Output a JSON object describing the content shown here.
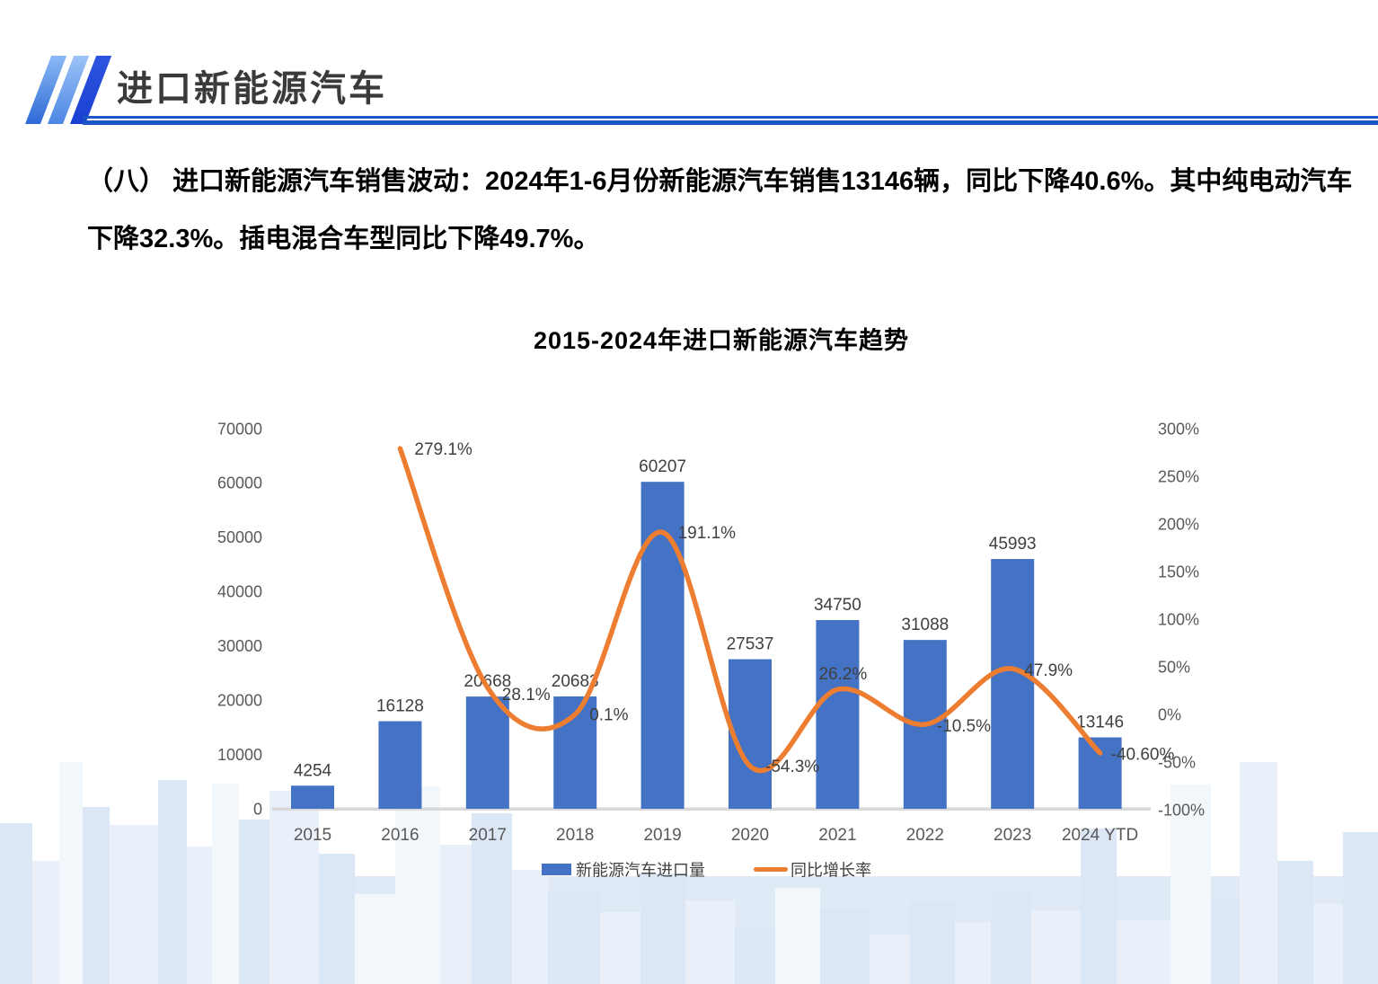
{
  "header": {
    "title": "进口新能源汽车"
  },
  "paragraph": {
    "lines": [
      "（八） 进口新能源汽车销售波动：2024年1-6月份新能源汽车销售13146辆，同比下降40.6%。其中纯电动汽车",
      "下降32.3%。插电混合车型同比下降49.7%。"
    ]
  },
  "colors": {
    "accent_blue": "#1b55c6",
    "bar_blue": "#4472C4",
    "line_orange": "#ED7D31",
    "axis_gray": "#595959",
    "baseline_gray": "#d8d8d8"
  },
  "chart_data": {
    "type": "combo",
    "title": "2015-2024年进口新能源汽车趋势",
    "categories": [
      "2015",
      "2016",
      "2017",
      "2018",
      "2019",
      "2020",
      "2021",
      "2022",
      "2023",
      "2024 YTD"
    ],
    "series": [
      {
        "name": "新能源汽车进口量",
        "type": "bar",
        "color": "#4472C4",
        "values": [
          4254,
          16128,
          20668,
          20683,
          60207,
          27537,
          34750,
          31088,
          45993,
          13146
        ],
        "labels": [
          "4254",
          "16128",
          "20668",
          "20683",
          "60207",
          "27537",
          "34750",
          "31088",
          "45993",
          "13146"
        ]
      },
      {
        "name": "同比增长率",
        "type": "line",
        "color": "#ED7D31",
        "values": [
          null,
          279.1,
          28.1,
          0.1,
          191.1,
          -54.3,
          26.2,
          -10.5,
          47.9,
          -40.6
        ],
        "labels": [
          null,
          "279.1%",
          "28.1%",
          "0.1%",
          "191.1%",
          "-54.3%",
          "26.2%",
          "-10.5%",
          "47.9%",
          "-40.60%"
        ]
      }
    ],
    "axes": {
      "left": {
        "min": 0,
        "max": 70000,
        "step": 10000,
        "ticks": [
          "70000",
          "60000",
          "50000",
          "40000",
          "30000",
          "20000",
          "10000",
          "0"
        ]
      },
      "right": {
        "min": -100,
        "max": 300,
        "step": 50,
        "ticks": [
          "300%",
          "250%",
          "200%",
          "150%",
          "100%",
          "50%",
          "0%",
          "-50%",
          "-100%"
        ]
      }
    },
    "grid": false,
    "legend_position": "bottom",
    "legend": [
      {
        "label": "新能源汽车进口量",
        "marker": "rect",
        "color": "#4472C4"
      },
      {
        "label": "同比增长率",
        "marker": "line",
        "color": "#ED7D31"
      }
    ]
  }
}
